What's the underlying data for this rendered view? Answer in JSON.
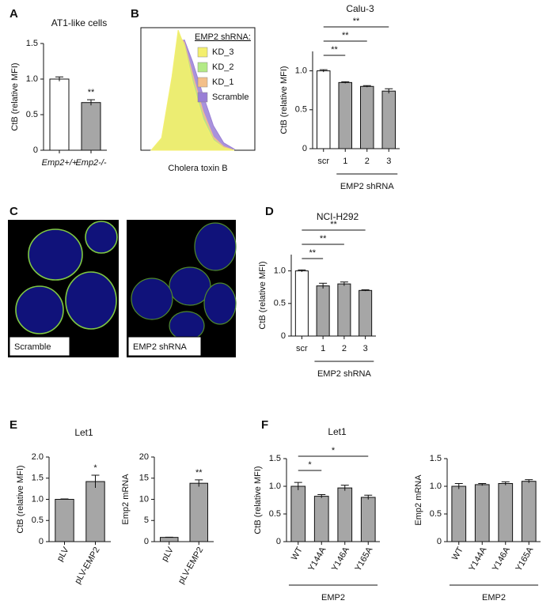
{
  "chart_data": [
    {
      "type": "bar",
      "panel": "A",
      "title": "AT1-like cells",
      "ylabel": "CtB (relative MFI)",
      "categories": [
        "Emp2+/+",
        "Emp2-/-"
      ],
      "values": [
        1.0,
        0.67
      ],
      "errors": [
        0.03,
        0.04
      ],
      "colors": [
        "#ffffff",
        "#a6a6a6"
      ],
      "bar_labels": [
        null,
        "**"
      ],
      "ylim": [
        0,
        1.5
      ],
      "yticks": [
        0,
        0.5,
        {
          "value": 1,
          "label": "1.0"
        },
        1.5
      ]
    },
    {
      "type": "area",
      "panel": "B",
      "xlabel": "Cholera toxin B",
      "legend_title": "EMP2 shRNA:",
      "x": [
        -1,
        -0.5,
        0,
        0.3,
        0.6,
        1,
        1.5,
        2,
        2.5,
        3
      ],
      "xlim": [
        -1.5,
        4
      ],
      "ylim": [
        0,
        100
      ],
      "series": [
        {
          "name": "KD_3",
          "color": "#f4ef6e",
          "values": [
            0,
            10,
            60,
            98,
            85,
            55,
            25,
            8,
            2,
            0
          ]
        },
        {
          "name": "KD_2",
          "color": "#b3ea86",
          "values": [
            0,
            9,
            58,
            96,
            86,
            58,
            28,
            9,
            2,
            0
          ]
        },
        {
          "name": "KD_1",
          "color": "#f3bf8a",
          "values": [
            0,
            8,
            55,
            94,
            88,
            62,
            32,
            11,
            3,
            0
          ]
        },
        {
          "name": "Scramble",
          "color": "#9a7fd6",
          "values": [
            0,
            6,
            48,
            88,
            90,
            72,
            45,
            20,
            6,
            1
          ]
        }
      ]
    },
    {
      "type": "bar",
      "title": "Calu-3",
      "ylabel": "CtB (relative MFI)",
      "xlabel": "EMP2 shRNA",
      "categories": [
        "scr",
        "1",
        "2",
        "3"
      ],
      "values": [
        1.0,
        0.85,
        0.8,
        0.74
      ],
      "errors": [
        0.015,
        0.01,
        0.01,
        0.03
      ],
      "colors": [
        "#ffffff",
        "#a6a6a6",
        "#a6a6a6",
        "#a6a6a6"
      ],
      "significance": [
        {
          "from": "scr",
          "to": "1",
          "label": "**"
        },
        {
          "from": "scr",
          "to": "2",
          "label": "**"
        },
        {
          "from": "scr",
          "to": "3",
          "label": "**"
        }
      ],
      "ylim": [
        0,
        1.25
      ],
      "yticks": [
        0,
        0.5,
        {
          "value": 1,
          "label": "1.0"
        }
      ]
    },
    {
      "type": "bar",
      "panel": "D",
      "title": "NCI-H292",
      "ylabel": "CtB (relative MFI)",
      "xlabel": "EMP2 shRNA",
      "categories": [
        "scr",
        "1",
        "2",
        "3"
      ],
      "values": [
        1.0,
        0.77,
        0.8,
        0.7
      ],
      "errors": [
        0.015,
        0.04,
        0.03,
        0.01
      ],
      "colors": [
        "#ffffff",
        "#a6a6a6",
        "#a6a6a6",
        "#a6a6a6"
      ],
      "significance": [
        {
          "from": "scr",
          "to": "1",
          "label": "**"
        },
        {
          "from": "scr",
          "to": "2",
          "label": "**"
        },
        {
          "from": "scr",
          "to": "3",
          "label": "**"
        }
      ],
      "ylim": [
        0,
        1.25
      ],
      "yticks": [
        0,
        0.5,
        {
          "value": 1,
          "label": "1.0"
        }
      ]
    },
    {
      "type": "bar",
      "panel": "E",
      "title": "Let1",
      "ylabel": "CtB (relative MFI)",
      "categories": [
        "pLV",
        "pLV-EMP2"
      ],
      "values": [
        1.0,
        1.42
      ],
      "errors": [
        0.01,
        0.15
      ],
      "colors": [
        "#a6a6a6",
        "#a6a6a6"
      ],
      "bar_labels": [
        null,
        "*"
      ],
      "ylim": [
        0,
        2
      ],
      "yticks": [
        0,
        0.5,
        {
          "value": 1,
          "label": "1.0"
        },
        1.5,
        {
          "value": 2,
          "label": "2.0"
        }
      ]
    },
    {
      "type": "bar",
      "ylabel": "Emp2 mRNA",
      "categories": [
        "pLV",
        "pLV-EMP2"
      ],
      "values": [
        1.0,
        13.8
      ],
      "errors": [
        0.05,
        0.8
      ],
      "colors": [
        "#a6a6a6",
        "#a6a6a6"
      ],
      "bar_labels": [
        null,
        "**"
      ],
      "ylim": [
        0,
        20
      ],
      "yticks": [
        0,
        5,
        10,
        15,
        20
      ]
    },
    {
      "type": "bar",
      "panel": "F",
      "title": "Let1",
      "ylabel": "CtB (relative MFI)",
      "xlabel": "EMP2",
      "categories": [
        "WT",
        "Y144A",
        "Y146A",
        "Y165A"
      ],
      "values": [
        1.0,
        0.82,
        0.97,
        0.8
      ],
      "errors": [
        0.07,
        0.03,
        0.05,
        0.04
      ],
      "colors": [
        "#a6a6a6",
        "#a6a6a6",
        "#a6a6a6",
        "#a6a6a6"
      ],
      "significance": [
        {
          "from": "WT",
          "to": "Y144A",
          "label": "*"
        },
        {
          "from": "WT",
          "to": "Y165A",
          "label": "*"
        }
      ],
      "ylim": [
        0,
        1.5
      ],
      "yticks": [
        0,
        0.5,
        {
          "value": 1,
          "label": "1.0"
        },
        1.5
      ]
    },
    {
      "type": "bar",
      "ylabel": "Emp2 mRNA",
      "xlabel": "EMP2",
      "categories": [
        "WT",
        "Y144A",
        "Y146A",
        "Y165A"
      ],
      "values": [
        1.0,
        1.03,
        1.05,
        1.09
      ],
      "errors": [
        0.05,
        0.02,
        0.03,
        0.03
      ],
      "colors": [
        "#a6a6a6",
        "#a6a6a6",
        "#a6a6a6",
        "#a6a6a6"
      ],
      "ylim": [
        0,
        1.5
      ],
      "yticks": [
        0,
        0.5,
        {
          "value": 1,
          "label": "1.0"
        },
        1.5
      ]
    }
  ],
  "images": {
    "panel": "C",
    "captions": [
      "Scramble",
      "EMP2 shRNA"
    ]
  }
}
